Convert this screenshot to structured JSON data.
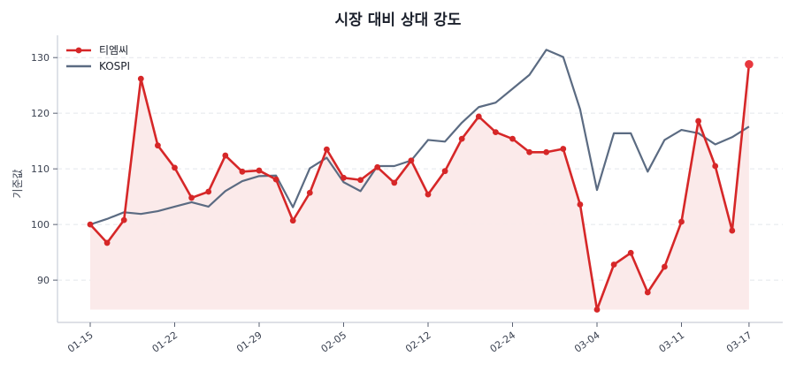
{
  "chart_data": {
    "type": "line",
    "title": "시장 대비 상대 강도",
    "xlabel": "",
    "ylabel": "기준값",
    "ylim": [
      82.4,
      134.0
    ],
    "yticks": [
      90,
      100,
      110,
      120,
      130
    ],
    "grid": "y-dashed",
    "legend_position": "upper left",
    "x_tick_labels": [
      {
        "index": 0,
        "label": "01-15"
      },
      {
        "index": 5,
        "label": "01-22"
      },
      {
        "index": 10,
        "label": "01-29"
      },
      {
        "index": 15,
        "label": "02-05"
      },
      {
        "index": 20,
        "label": "02-12"
      },
      {
        "index": 25,
        "label": "02-24"
      },
      {
        "index": 30,
        "label": "03-04"
      },
      {
        "index": 35,
        "label": "03-11"
      },
      {
        "index": 39,
        "label": "03-17"
      }
    ],
    "point_count": 40,
    "series": [
      {
        "name": "티엠씨",
        "color": "#d62728",
        "markers": true,
        "fill_under": true,
        "fill_color": "#fbe9e9",
        "highlight_last": true,
        "values": [
          100.0,
          96.7,
          100.8,
          126.2,
          114.2,
          110.2,
          104.8,
          105.9,
          112.4,
          109.5,
          109.7,
          108.1,
          100.7,
          105.7,
          113.5,
          108.4,
          108.0,
          110.3,
          107.5,
          111.5,
          105.4,
          109.6,
          115.4,
          119.4,
          116.6,
          115.4,
          113.0,
          113.0,
          113.6,
          103.6,
          84.7,
          92.8,
          94.9,
          87.8,
          92.4,
          100.5,
          118.6,
          110.5,
          98.9,
          128.8
        ]
      },
      {
        "name": "KOSPI",
        "color": "#5b6b82",
        "markers": false,
        "values": [
          100.0,
          101.0,
          102.2,
          101.9,
          102.4,
          103.2,
          104.0,
          103.2,
          106.0,
          107.8,
          108.7,
          108.8,
          103.1,
          110.1,
          112.0,
          107.6,
          106.0,
          110.5,
          110.5,
          111.5,
          115.2,
          114.9,
          118.3,
          121.1,
          121.9,
          124.4,
          126.9,
          131.4,
          130.1,
          120.7,
          106.2,
          116.4,
          116.4,
          109.5,
          115.2,
          117.0,
          116.4,
          114.4,
          115.7,
          117.6
        ]
      }
    ]
  },
  "legend": {
    "items": [
      {
        "label": "티엠씨",
        "color": "#d62728",
        "marker": true
      },
      {
        "label": "KOSPI",
        "color": "#5b6b82",
        "marker": false
      }
    ]
  },
  "colors": {
    "axis": "#c9ced8",
    "grid": "#e3e6eb",
    "text": "#3a4150"
  }
}
